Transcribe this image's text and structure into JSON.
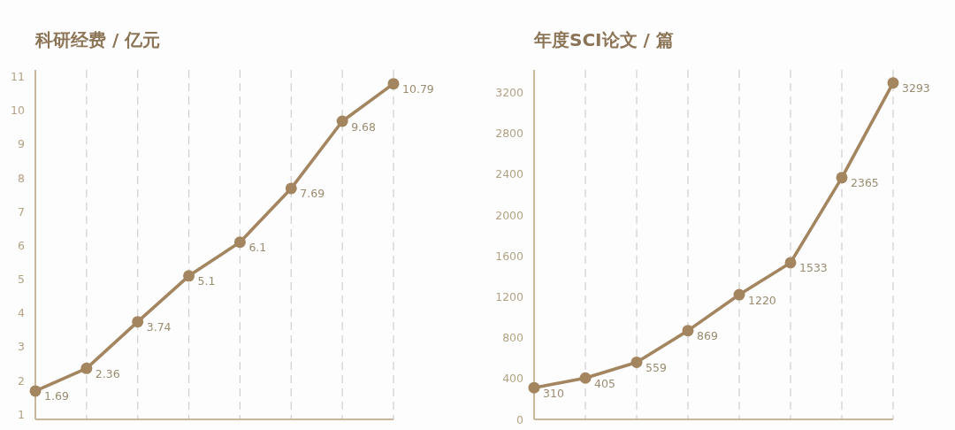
{
  "chart_data": [
    {
      "type": "line",
      "title": "科研经费 / 亿元",
      "categories": [
        null,
        null,
        null,
        null,
        null,
        null,
        null,
        null
      ],
      "values": [
        1.69,
        2.36,
        3.74,
        5.1,
        6.1,
        7.69,
        9.68,
        10.79
      ],
      "color": "#a38560",
      "ylim": [
        0.85,
        11.2
      ],
      "yticks": [
        1,
        2,
        3,
        4,
        5,
        6,
        7,
        8,
        9,
        10,
        11
      ],
      "grid": "x",
      "marker": "circle",
      "data_labels": true,
      "tick_labels": "y"
    },
    {
      "type": "line",
      "title": "年度SCI论文 / 篇",
      "categories": [
        null,
        null,
        null,
        null,
        null,
        null,
        null,
        null
      ],
      "values": [
        310,
        405,
        559,
        869,
        1220,
        1533,
        2365,
        3293
      ],
      "color": "#a38560",
      "ylim": [
        0,
        3420
      ],
      "yticks": [
        0,
        400,
        800,
        1200,
        1600,
        2000,
        2400,
        2800,
        3200
      ],
      "grid": "x",
      "marker": "circle",
      "data_labels": true,
      "tick_labels": "y"
    }
  ]
}
